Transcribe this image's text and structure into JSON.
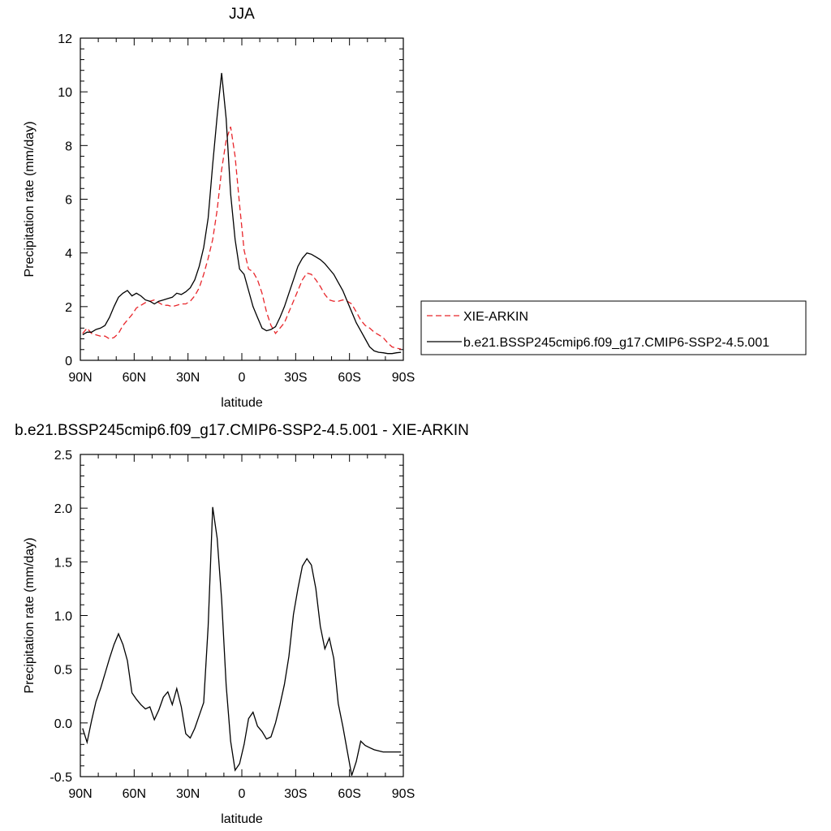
{
  "chart_data": [
    {
      "type": "line",
      "title": "JJA",
      "xlabel": "latitude",
      "ylabel": "Precipitation rate (mm/day)",
      "xlim": [
        90,
        -90
      ],
      "ylim": [
        0,
        12
      ],
      "x_ticks": [
        {
          "value": 90,
          "label": "90N"
        },
        {
          "value": 60,
          "label": "60N"
        },
        {
          "value": 30,
          "label": "30N"
        },
        {
          "value": 0,
          "label": "0"
        },
        {
          "value": -30,
          "label": "30S"
        },
        {
          "value": -60,
          "label": "60S"
        },
        {
          "value": -90,
          "label": "90S"
        }
      ],
      "y_ticks": [
        {
          "value": 0,
          "label": "0"
        },
        {
          "value": 2,
          "label": "2"
        },
        {
          "value": 4,
          "label": "4"
        },
        {
          "value": 6,
          "label": "6"
        },
        {
          "value": 8,
          "label": "8"
        },
        {
          "value": 10,
          "label": "10"
        },
        {
          "value": 12,
          "label": "12"
        }
      ],
      "legend_position": "right",
      "series": [
        {
          "name": "XIE-ARKIN",
          "color": "#e8262b",
          "dash": "dashed",
          "x": [
            88.75,
            86.25,
            83.75,
            81.25,
            78.75,
            76.25,
            73.75,
            71.25,
            68.75,
            66.25,
            63.75,
            61.25,
            58.75,
            56.25,
            53.75,
            51.25,
            48.75,
            46.25,
            43.75,
            41.25,
            38.75,
            36.25,
            33.75,
            31.25,
            28.75,
            26.25,
            23.75,
            21.25,
            18.75,
            16.25,
            13.75,
            11.25,
            8.75,
            6.25,
            3.75,
            1.25,
            -1.25,
            -3.75,
            -6.25,
            -8.75,
            -11.25,
            -13.75,
            -16.25,
            -18.75,
            -21.25,
            -23.75,
            -26.25,
            -28.75,
            -31.25,
            -33.75,
            -36.25,
            -38.75,
            -41.25,
            -43.75,
            -46.25,
            -48.75,
            -51.25,
            -53.75,
            -56.25,
            -58.75,
            -61.25,
            -63.75,
            -66.25,
            -68.75,
            -71.25,
            -73.75,
            -76.25,
            -78.75,
            -81.25,
            -83.75,
            -86.25,
            -88.75
          ],
          "y": [
            1.0,
            1.2,
            1.0,
            0.95,
            0.9,
            0.9,
            0.8,
            0.85,
            1.0,
            1.3,
            1.5,
            1.7,
            1.95,
            2.05,
            2.15,
            2.2,
            2.25,
            2.15,
            2.05,
            2.05,
            2.0,
            2.05,
            2.1,
            2.1,
            2.2,
            2.4,
            2.7,
            3.2,
            3.8,
            4.5,
            5.6,
            7.1,
            8.2,
            8.7,
            7.6,
            5.8,
            4.1,
            3.4,
            3.3,
            3.0,
            2.5,
            1.8,
            1.3,
            1.0,
            1.2,
            1.4,
            1.8,
            2.2,
            2.6,
            3.0,
            3.25,
            3.2,
            3.0,
            2.75,
            2.45,
            2.25,
            2.2,
            2.2,
            2.25,
            2.2,
            2.1,
            1.8,
            1.5,
            1.3,
            1.2,
            1.05,
            0.95,
            0.85,
            0.65,
            0.5,
            0.45,
            0.42
          ]
        },
        {
          "name": "b.e21.BSSP245cmip6.f09_g17.CMIP6-SSP2-4.5.001",
          "color": "#000000",
          "dash": "solid",
          "x": [
            88.75,
            86.25,
            83.75,
            81.25,
            78.75,
            76.25,
            73.75,
            71.25,
            68.75,
            66.25,
            63.75,
            61.25,
            58.75,
            56.25,
            53.75,
            51.25,
            48.75,
            46.25,
            43.75,
            41.25,
            38.75,
            36.25,
            33.75,
            31.25,
            28.75,
            26.25,
            23.75,
            21.25,
            18.75,
            16.25,
            13.75,
            11.25,
            8.75,
            6.25,
            3.75,
            1.25,
            -1.25,
            -3.75,
            -6.25,
            -8.75,
            -11.25,
            -13.75,
            -16.25,
            -18.75,
            -21.25,
            -23.75,
            -26.25,
            -28.75,
            -31.25,
            -33.75,
            -36.25,
            -38.75,
            -41.25,
            -43.75,
            -46.25,
            -48.75,
            -51.25,
            -53.75,
            -56.25,
            -58.75,
            -61.25,
            -63.75,
            -66.25,
            -68.75,
            -71.25,
            -73.75,
            -76.25,
            -78.75,
            -81.25,
            -83.75,
            -86.25,
            -88.75
          ],
          "y": [
            0.95,
            1.05,
            1.05,
            1.15,
            1.2,
            1.3,
            1.6,
            2.0,
            2.35,
            2.5,
            2.6,
            2.4,
            2.5,
            2.4,
            2.25,
            2.2,
            2.1,
            2.2,
            2.25,
            2.3,
            2.35,
            2.5,
            2.45,
            2.55,
            2.7,
            3.0,
            3.5,
            4.2,
            5.3,
            7.3,
            9.1,
            10.7,
            9.0,
            6.2,
            4.5,
            3.4,
            3.2,
            2.6,
            2.0,
            1.6,
            1.2,
            1.1,
            1.15,
            1.25,
            1.6,
            2.0,
            2.5,
            3.0,
            3.5,
            3.8,
            4.0,
            3.95,
            3.85,
            3.75,
            3.6,
            3.4,
            3.2,
            2.9,
            2.6,
            2.2,
            1.8,
            1.4,
            1.1,
            0.8,
            0.5,
            0.35,
            0.3,
            0.28,
            0.25,
            0.25,
            0.28,
            0.3
          ]
        }
      ]
    },
    {
      "type": "line",
      "title": "b.e21.BSSP245cmip6.f09_g17.CMIP6-SSP2-4.5.001 - XIE-ARKIN",
      "xlabel": "latitude",
      "ylabel": "Precipitation rate (mm/day)",
      "xlim": [
        90,
        -90
      ],
      "ylim": [
        -0.5,
        2.5
      ],
      "x_ticks": [
        {
          "value": 90,
          "label": "90N"
        },
        {
          "value": 60,
          "label": "60N"
        },
        {
          "value": 30,
          "label": "30N"
        },
        {
          "value": 0,
          "label": "0"
        },
        {
          "value": -30,
          "label": "30S"
        },
        {
          "value": -60,
          "label": "60S"
        },
        {
          "value": -90,
          "label": "90S"
        }
      ],
      "y_ticks": [
        {
          "value": -0.5,
          "label": "-0.5"
        },
        {
          "value": 0,
          "label": "0.0"
        },
        {
          "value": 0.5,
          "label": "0.5"
        },
        {
          "value": 1.0,
          "label": "1.0"
        },
        {
          "value": 1.5,
          "label": "1.5"
        },
        {
          "value": 2.0,
          "label": "2.0"
        },
        {
          "value": 2.5,
          "label": "2.5"
        }
      ],
      "series": [
        {
          "color": "#000000",
          "dash": "solid",
          "x": [
            88.75,
            86.25,
            83.75,
            81.25,
            78.75,
            76.25,
            73.75,
            71.25,
            68.75,
            66.25,
            63.75,
            61.25,
            58.75,
            56.25,
            53.75,
            51.25,
            48.75,
            46.25,
            43.75,
            41.25,
            38.75,
            36.25,
            33.75,
            31.25,
            28.75,
            26.25,
            23.75,
            21.25,
            18.75,
            16.25,
            13.75,
            11.25,
            8.75,
            6.25,
            3.75,
            1.25,
            -1.25,
            -3.75,
            -6.25,
            -8.75,
            -11.25,
            -13.75,
            -16.25,
            -18.75,
            -21.25,
            -23.75,
            -26.25,
            -28.75,
            -31.25,
            -33.75,
            -36.25,
            -38.75,
            -41.25,
            -43.75,
            -46.25,
            -48.75,
            -51.25,
            -53.75,
            -56.25,
            -58.75,
            -61.25,
            -63.75,
            -66.25,
            -68.75,
            -71.25,
            -73.75,
            -76.25,
            -78.75,
            -81.25,
            -83.75,
            -86.25,
            -88.75
          ],
          "y": [
            -0.05,
            -0.18,
            0.02,
            0.2,
            0.32,
            0.46,
            0.6,
            0.73,
            0.83,
            0.73,
            0.58,
            0.28,
            0.22,
            0.17,
            0.13,
            0.15,
            0.03,
            0.12,
            0.24,
            0.29,
            0.17,
            0.32,
            0.15,
            -0.1,
            -0.14,
            -0.05,
            0.07,
            0.19,
            0.9,
            2.01,
            1.72,
            1.15,
            0.35,
            -0.17,
            -0.44,
            -0.38,
            -0.2,
            0.04,
            0.1,
            -0.03,
            -0.08,
            -0.15,
            -0.13,
            0.0,
            0.17,
            0.36,
            0.62,
            1.01,
            1.25,
            1.46,
            1.53,
            1.47,
            1.25,
            0.9,
            0.69,
            0.79,
            0.6,
            0.18,
            -0.03,
            -0.26,
            -0.49,
            -0.36,
            -0.17,
            -0.21,
            -0.23,
            -0.25,
            -0.26,
            -0.27,
            -0.27,
            -0.27,
            -0.27,
            -0.27
          ]
        }
      ]
    }
  ]
}
